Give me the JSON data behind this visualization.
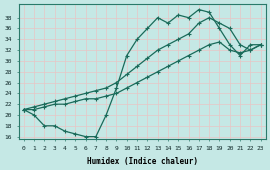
{
  "xlabel": "Humidex (Indice chaleur)",
  "bg_color": "#c5e8e5",
  "grid_color": "#e8c5c5",
  "line_color": "#1a6b5a",
  "xlim": [
    -0.5,
    23.5
  ],
  "ylim": [
    15.5,
    40.5
  ],
  "yticks": [
    16,
    18,
    20,
    22,
    24,
    26,
    28,
    30,
    32,
    34,
    36,
    38
  ],
  "xticks": [
    0,
    1,
    2,
    3,
    4,
    5,
    6,
    7,
    8,
    9,
    10,
    11,
    12,
    13,
    14,
    15,
    16,
    17,
    18,
    19,
    20,
    21,
    22,
    23
  ],
  "line_jagged_x": [
    0,
    1,
    2,
    3,
    4,
    5,
    6,
    7,
    8,
    9,
    10,
    11,
    12,
    13,
    14,
    15,
    16,
    17,
    18,
    19,
    20,
    21,
    22,
    23
  ],
  "line_jagged_y": [
    21,
    20,
    18,
    18,
    17,
    16.5,
    16,
    16,
    20,
    25,
    31,
    34,
    36,
    38,
    37,
    38.5,
    38,
    39.5,
    39,
    36,
    33,
    31,
    33,
    33
  ],
  "line_upper_x": [
    0,
    1,
    2,
    3,
    4,
    5,
    6,
    7,
    8,
    9,
    10,
    11,
    12,
    13,
    14,
    15,
    16,
    17,
    18,
    19,
    20,
    21,
    22,
    23
  ],
  "line_upper_y": [
    21,
    21.5,
    22,
    22.5,
    23,
    23.5,
    24,
    24.5,
    25,
    26,
    27.5,
    29,
    30.5,
    32,
    33,
    34,
    35,
    37,
    38,
    37,
    36,
    33,
    32,
    33
  ],
  "line_lower_x": [
    0,
    1,
    2,
    3,
    4,
    5,
    6,
    7,
    8,
    9,
    10,
    11,
    12,
    13,
    14,
    15,
    16,
    17,
    18,
    19,
    20,
    21,
    22,
    23
  ],
  "line_lower_y": [
    21,
    21,
    21.5,
    22,
    22,
    22.5,
    23,
    23,
    23.5,
    24,
    25,
    26,
    27,
    28,
    29,
    30,
    31,
    32,
    33,
    33.5,
    32,
    31.5,
    32,
    33
  ]
}
